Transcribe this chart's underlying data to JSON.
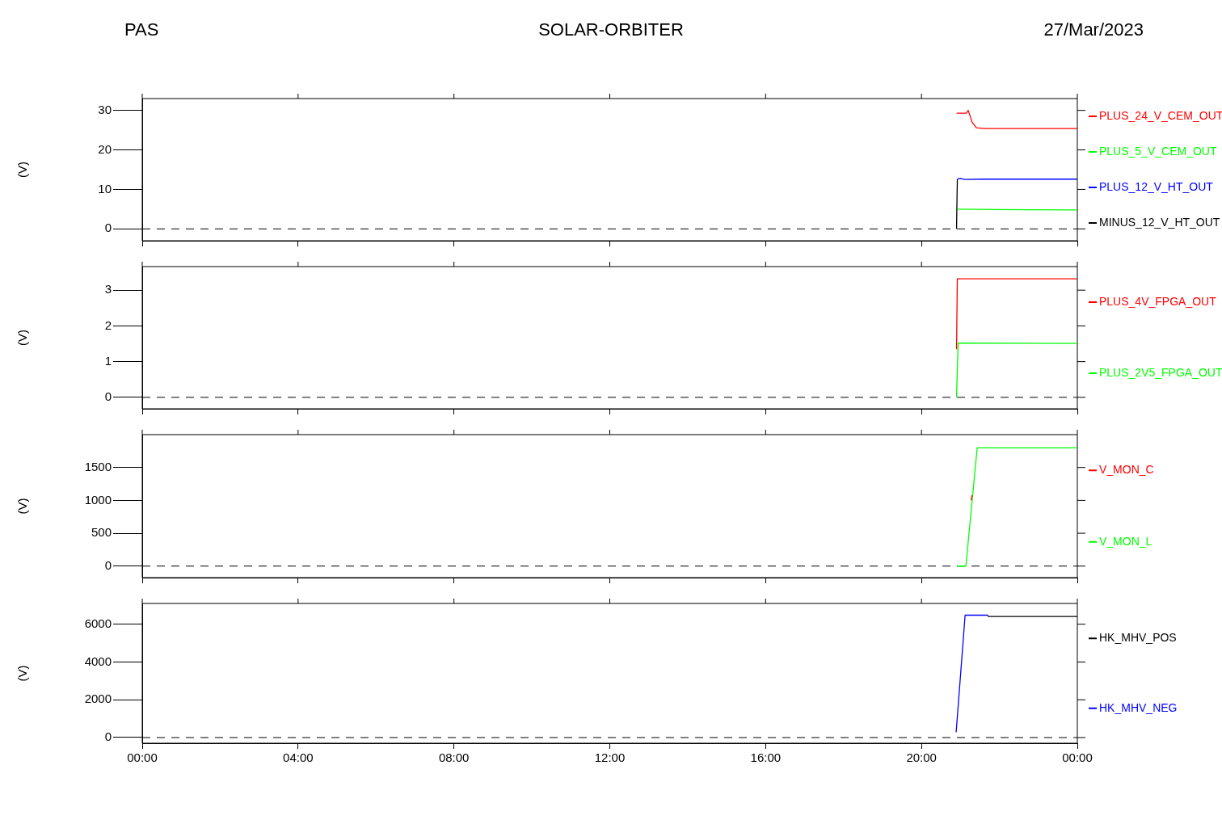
{
  "chart_data": [
    {
      "type": "line",
      "title": "SOLAR-ORBITER",
      "annotations": [
        "PAS",
        "27/Mar/2023"
      ],
      "ylabel": "(V)",
      "xlim": [
        0,
        24
      ],
      "xticks": [
        {
          "value": 0,
          "label": null
        },
        {
          "value": 4,
          "label": null
        },
        {
          "value": 8,
          "label": null
        },
        {
          "value": 12,
          "label": null
        },
        {
          "value": 16,
          "label": null
        },
        {
          "value": 20,
          "label": null
        },
        {
          "value": 24,
          "label": null
        }
      ],
      "ylim": [
        -3,
        33
      ],
      "yticks": [
        0,
        10,
        20,
        30
      ],
      "tick_labels": "y",
      "grid": false,
      "legend": "right",
      "marker": "none",
      "line_style": "solid",
      "ref_lines": [
        {
          "axis": "y",
          "value": 0,
          "color": "#000000",
          "line_style": "dashed"
        }
      ],
      "series": [
        {
          "name": "PLUS_24_V_CEM_OUT",
          "color": "#ff0000",
          "x": [
            20.9,
            21.15,
            21.2,
            21.3,
            21.41,
            21.6,
            24
          ],
          "values": [
            29.3,
            29.3,
            30,
            27,
            25.6,
            25.4,
            25.4
          ]
        },
        {
          "name": "PLUS_5_V_CEM_OUT",
          "color": "#00ff00",
          "x": [
            20.92,
            21.9,
            24
          ],
          "values": [
            5.0,
            4.9,
            4.8
          ]
        },
        {
          "name": "PLUS_12_V_HT_OUT",
          "color": "#0000ff",
          "x": [
            20.92,
            21.0,
            21.1,
            21.6,
            24
          ],
          "values": [
            12.6,
            12.8,
            12.5,
            12.6,
            12.6
          ]
        },
        {
          "name": "MINUS_12_V_HT_OUT",
          "color": "#000000",
          "x": [
            20.9,
            20.92
          ],
          "values": [
            0,
            12.6
          ]
        }
      ]
    },
    {
      "type": "line",
      "ylabel": "(V)",
      "xlim": [
        0,
        24
      ],
      "xticks": [
        {
          "value": 0,
          "label": null
        },
        {
          "value": 4,
          "label": null
        },
        {
          "value": 8,
          "label": null
        },
        {
          "value": 12,
          "label": null
        },
        {
          "value": 16,
          "label": null
        },
        {
          "value": 20,
          "label": null
        },
        {
          "value": 24,
          "label": null
        }
      ],
      "ylim": [
        -0.32,
        3.66
      ],
      "yticks": [
        0,
        1,
        2,
        3
      ],
      "tick_labels": "y",
      "grid": false,
      "legend": "right",
      "marker": "none",
      "line_style": "solid",
      "ref_lines": [
        {
          "axis": "y",
          "value": 0,
          "color": "#000000",
          "line_style": "dashed"
        }
      ],
      "series": [
        {
          "name": "PLUS_4V_FPGA_OUT",
          "color": "#ff0000",
          "x": [
            20.9,
            20.92,
            24
          ],
          "values": [
            1.35,
            3.32,
            3.32
          ]
        },
        {
          "name": "PLUS_2V5_FPGA_OUT",
          "color": "#00ff00",
          "x": [
            20.9,
            20.94,
            24
          ],
          "values": [
            0,
            1.52,
            1.51
          ]
        }
      ]
    },
    {
      "type": "line",
      "ylabel": "(V)",
      "xlim": [
        0,
        24
      ],
      "xticks": [
        {
          "value": 0,
          "label": null
        },
        {
          "value": 4,
          "label": null
        },
        {
          "value": 8,
          "label": null
        },
        {
          "value": 12,
          "label": null
        },
        {
          "value": 16,
          "label": null
        },
        {
          "value": 20,
          "label": null
        },
        {
          "value": 24,
          "label": null
        }
      ],
      "ylim": [
        -175,
        2000
      ],
      "yticks": [
        0,
        500,
        1000,
        1500
      ],
      "tick_labels": "y",
      "grid": false,
      "legend": "right",
      "marker": "none",
      "line_style": "solid",
      "ref_lines": [
        {
          "axis": "y",
          "value": 0,
          "color": "#000000",
          "line_style": "dashed"
        }
      ],
      "series": [
        {
          "name": "V_MON_C",
          "color": "#ff0000",
          "x": [
            21.27,
            21.3
          ],
          "values": [
            1000,
            1080
          ]
        },
        {
          "name": "V_MON_L",
          "color": "#00ff00",
          "x": [
            20.93,
            21.14,
            21.43,
            24
          ],
          "values": [
            0,
            0,
            1800,
            1800
          ]
        }
      ]
    },
    {
      "type": "line",
      "ylabel": "(V)",
      "xlim": [
        0,
        24
      ],
      "xticks": [
        {
          "value": 0,
          "label": "00:00"
        },
        {
          "value": 4,
          "label": "04:00"
        },
        {
          "value": 8,
          "label": "08:00"
        },
        {
          "value": 12,
          "label": "12:00"
        },
        {
          "value": 16,
          "label": "16:00"
        },
        {
          "value": 20,
          "label": "20:00"
        },
        {
          "value": 24,
          "label": "00:00"
        }
      ],
      "ylim": [
        -300,
        7100
      ],
      "yticks": [
        0,
        2000,
        4000,
        6000
      ],
      "grid": false,
      "legend": "right",
      "marker": "none",
      "line_style": "solid",
      "ref_lines": [
        {
          "axis": "y",
          "value": 0,
          "color": "#000000",
          "line_style": "dashed"
        }
      ],
      "series": [
        {
          "name": "HK_MHV_POS",
          "color": "#000000",
          "x": [
            21.7,
            21.72,
            24
          ],
          "values": [
            6480,
            6410,
            6410
          ]
        },
        {
          "name": "HK_MHV_NEG",
          "color": "#0000ff",
          "x": [
            20.89,
            21.12,
            21.7
          ],
          "values": [
            280,
            6480,
            6480
          ]
        }
      ]
    }
  ]
}
